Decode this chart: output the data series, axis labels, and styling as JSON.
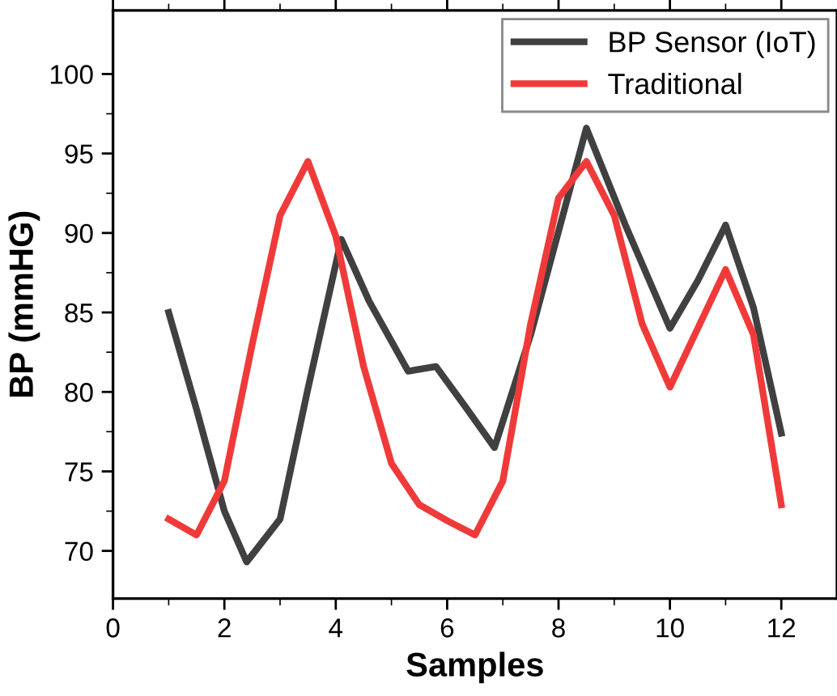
{
  "chart_data": {
    "type": "line",
    "xlabel": "Samples",
    "ylabel": "BP (mmHG)",
    "xlim": [
      0,
      13
    ],
    "xticks": [
      0,
      2,
      4,
      6,
      8,
      10,
      12
    ],
    "ylim": [
      67,
      104
    ],
    "yticks": [
      70,
      75,
      80,
      85,
      90,
      95,
      100
    ],
    "grid": false,
    "legend": "top right",
    "marker": "none",
    "line_style": "solid",
    "series": [
      {
        "name": "BP Sensor (IoT)",
        "color": "#404040",
        "x": [
          1,
          1.5,
          2,
          2.4,
          3,
          3.5,
          4.1,
          4.6,
          5.3,
          5.8,
          6.3,
          6.85,
          7.5,
          8.5,
          9.2,
          10,
          10.5,
          11,
          11.5,
          12
        ],
        "values": [
          85.0,
          78.9,
          72.5,
          69.3,
          72.0,
          80.2,
          89.6,
          85.7,
          81.3,
          81.6,
          79.2,
          76.5,
          83.6,
          96.6,
          90.5,
          84.0,
          87.0,
          90.5,
          85.3,
          77.4
        ]
      },
      {
        "name": "Traditional",
        "color": "#f03a3a",
        "x": [
          1,
          1.5,
          2,
          2.5,
          3,
          3.5,
          4,
          4.5,
          5,
          5.5,
          6,
          6.5,
          7,
          7.5,
          8,
          8.5,
          9,
          9.5,
          10,
          10.5,
          11,
          11.5,
          12
        ],
        "values": [
          72.0,
          71.0,
          74.4,
          83.0,
          91.1,
          94.5,
          89.8,
          81.6,
          75.5,
          72.9,
          71.9,
          71.0,
          74.4,
          84.3,
          92.2,
          94.5,
          91.1,
          84.3,
          80.3,
          84.0,
          87.7,
          83.6,
          72.9
        ]
      }
    ]
  }
}
